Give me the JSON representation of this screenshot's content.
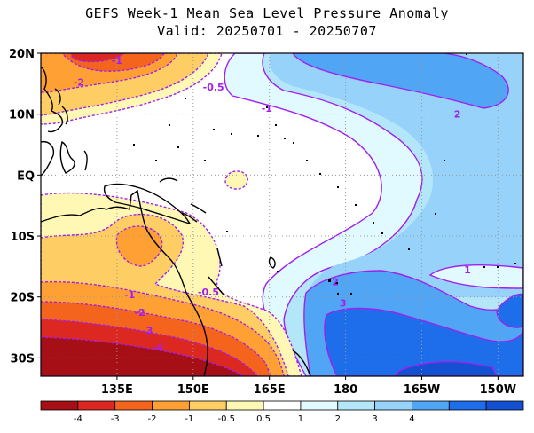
{
  "title": {
    "line1": "GEFS Week-1 Mean Sea Level Pressure Anomaly",
    "line2": "Valid: 20250701 - 20250707"
  },
  "axes": {
    "lat_labels": [
      {
        "text": "20N",
        "lat": 20
      },
      {
        "text": "10N",
        "lat": 10
      },
      {
        "text": "EQ",
        "lat": 0
      },
      {
        "text": "10S",
        "lat": -10
      },
      {
        "text": "20S",
        "lat": -20
      },
      {
        "text": "30S",
        "lat": -30
      }
    ],
    "lon_labels": [
      {
        "text": "135E",
        "lon": 135
      },
      {
        "text": "150E",
        "lon": 150
      },
      {
        "text": "165E",
        "lon": 165
      },
      {
        "text": "180",
        "lon": 180
      },
      {
        "text": "165W",
        "lon": 195
      },
      {
        "text": "150W",
        "lon": 210
      }
    ],
    "lon_range": [
      120,
      215
    ],
    "lat_range": [
      -33,
      20
    ]
  },
  "contour_labels": [
    {
      "text": "-1",
      "lon": 135,
      "lat": 18.8,
      "color": "#a020f0"
    },
    {
      "text": "-2",
      "lon": 127.5,
      "lat": 15.3,
      "color": "#a020f0"
    },
    {
      "text": "-0.5",
      "lon": 154,
      "lat": 14.5,
      "color": "#a020f0"
    },
    {
      "text": "-1",
      "lon": 164.5,
      "lat": 11,
      "color": "#a020f0"
    },
    {
      "text": "2",
      "lon": 202,
      "lat": 10,
      "color": "#a020f0"
    },
    {
      "text": "1",
      "lon": 204,
      "lat": -15.5,
      "color": "#a020f0"
    },
    {
      "text": "-1",
      "lon": 137.5,
      "lat": -19.6,
      "color": "#a020f0"
    },
    {
      "text": "-0.5",
      "lon": 153,
      "lat": -19.2,
      "color": "#a020f0"
    },
    {
      "text": "-2",
      "lon": 139.5,
      "lat": -22.5,
      "color": "#a020f0"
    },
    {
      "text": "-3",
      "lon": 141,
      "lat": -25.5,
      "color": "#a020f0"
    },
    {
      "text": "-4",
      "lon": 143,
      "lat": -28.3,
      "color": "#a020f0"
    },
    {
      "text": "2",
      "lon": 178,
      "lat": -17.5,
      "color": "#a020f0"
    },
    {
      "text": "3",
      "lon": 179.5,
      "lat": -21,
      "color": "#a020f0"
    }
  ],
  "colorbar": {
    "colors": [
      "#a50f15",
      "#dc2820",
      "#f5641c",
      "#fea033",
      "#fece64",
      "#fff8b4",
      "#ffffff",
      "#e1faff",
      "#b4e6fa",
      "#96d2fa",
      "#50a5f5",
      "#1e6eeb",
      "#1450d2"
    ],
    "ticks": [
      {
        "text": "-4",
        "index": 1
      },
      {
        "text": "-3",
        "index": 2
      },
      {
        "text": "-2",
        "index": 3
      },
      {
        "text": "-1",
        "index": 4
      },
      {
        "text": "-0.5",
        "index": 5
      },
      {
        "text": "0.5",
        "index": 6
      },
      {
        "text": "1",
        "index": 7
      },
      {
        "text": "2",
        "index": 8
      },
      {
        "text": "3",
        "index": 9
      },
      {
        "text": "4",
        "index": 10
      }
    ]
  }
}
